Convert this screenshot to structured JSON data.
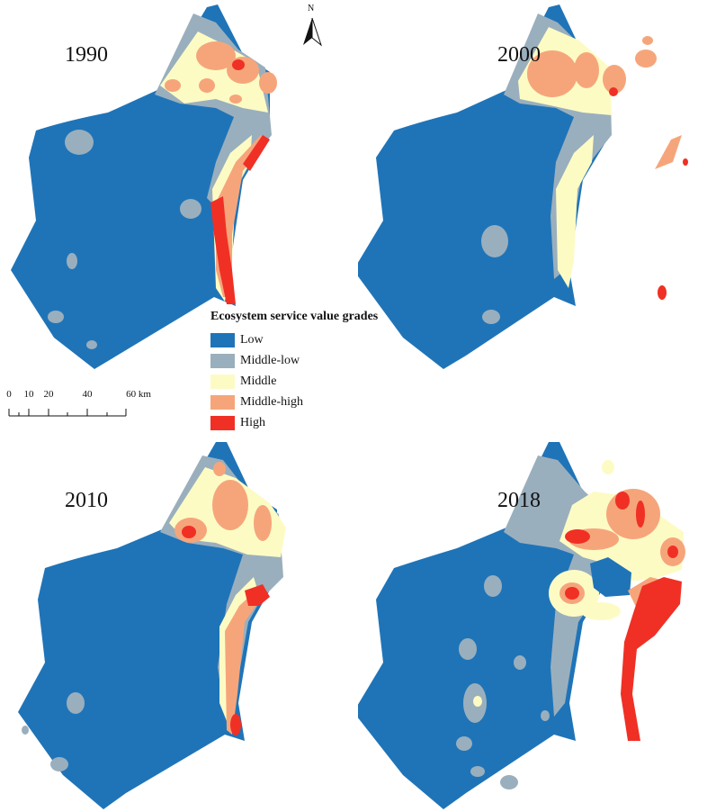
{
  "figure": {
    "panels": [
      {
        "year": "1990",
        "hotspots": [
          "north-cluster",
          "east-coast-strip"
        ]
      },
      {
        "year": "2000",
        "hotspots": [
          "north-cluster",
          "east-coast-strip"
        ]
      },
      {
        "year": "2010",
        "hotspots": [
          "north-cluster",
          "east-coast-strip"
        ]
      },
      {
        "year": "2018",
        "hotspots": [
          "north-cluster",
          "east-coast-strip",
          "central-ring"
        ]
      }
    ],
    "north_arrow": {
      "label": "N"
    },
    "legend": {
      "title": "Ecosystem service value grades",
      "items": [
        {
          "label": "Low",
          "color": "#1f74b8"
        },
        {
          "label": "Middle-low",
          "color": "#9aafbd"
        },
        {
          "label": "Middle",
          "color": "#fdfbc4"
        },
        {
          "label": "Middle-high",
          "color": "#f6a57b"
        },
        {
          "label": "High",
          "color": "#f03025"
        }
      ]
    },
    "scale_bar": {
      "ticks": [
        "0",
        "10",
        "20",
        "40",
        "60 km"
      ],
      "unit": "km"
    }
  }
}
